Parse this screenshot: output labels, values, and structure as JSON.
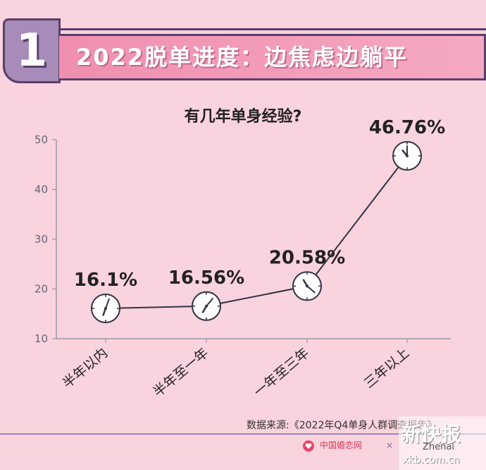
{
  "header": {
    "number": "1",
    "title": "2022脱单进度：边焦虑边躺平"
  },
  "chart_data": {
    "type": "line",
    "title": "有几年单身经验?",
    "categories": [
      "半年以内",
      "半年至一年",
      "一年至三年",
      "三年以上"
    ],
    "values": [
      16.1,
      16.56,
      20.58,
      46.76
    ],
    "value_labels": [
      "16.1%",
      "16.56%",
      "20.58%",
      "46.76%"
    ],
    "ylim": [
      10,
      50
    ],
    "yticks": [
      "10",
      "20",
      "30",
      "40",
      "50"
    ],
    "marker": "clock-icon",
    "grid": false,
    "colors": {
      "line": "#333344",
      "axis": "#8a8aa0",
      "marker_fill": "#ffffff",
      "text": "#222222"
    }
  },
  "footer": {
    "source": "数据来源:《2022年Q4单身人群调查报告》",
    "brand": "中国婚恋网",
    "brand_x": "×",
    "partner": "Zhenai",
    "watermark_main": "新快报",
    "watermark_url": "xkb.com.cn"
  }
}
